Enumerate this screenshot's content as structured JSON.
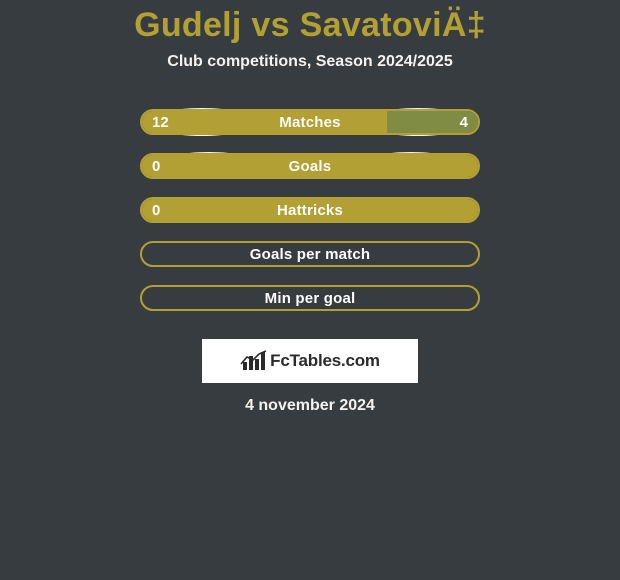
{
  "title": "Gudelj vs SavatoviÄ‡",
  "subtitle": "Club competitions, Season 2024/2025",
  "colors": {
    "background": "#373c40",
    "accent": "#b3a034",
    "fill_left": "#b3a034",
    "fill_right": "#808c44",
    "disc": "#f5f5f4",
    "text": "#fdfdfb"
  },
  "rows": [
    {
      "label": "Matches",
      "left_val": "12",
      "right_val": "4",
      "left_pct": 73,
      "right_pct": 27,
      "discs": "big"
    },
    {
      "label": "Goals",
      "left_val": "0",
      "right_val": "",
      "left_pct": 100,
      "right_pct": 0,
      "discs": "small"
    },
    {
      "label": "Hattricks",
      "left_val": "0",
      "right_val": "",
      "left_pct": 100,
      "right_pct": 0,
      "discs": "none"
    },
    {
      "label": "Goals per match",
      "left_val": "",
      "right_val": "",
      "left_pct": 0,
      "right_pct": 0,
      "discs": "none"
    },
    {
      "label": "Min per goal",
      "left_val": "",
      "right_val": "",
      "left_pct": 0,
      "right_pct": 0,
      "discs": "none"
    }
  ],
  "footer_brand": "FcTables.com",
  "date": "4 november 2024"
}
